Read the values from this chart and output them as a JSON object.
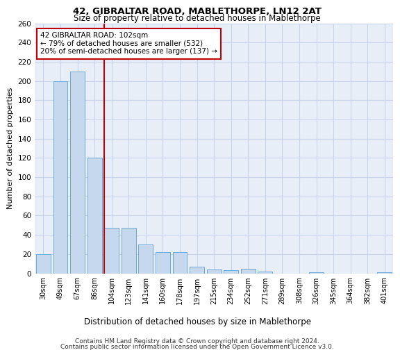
{
  "title": "42, GIBRALTAR ROAD, MABLETHORPE, LN12 2AT",
  "subtitle": "Size of property relative to detached houses in Mablethorpe",
  "xlabel": "Distribution of detached houses by size in Mablethorpe",
  "ylabel": "Number of detached properties",
  "categories": [
    "30sqm",
    "49sqm",
    "67sqm",
    "86sqm",
    "104sqm",
    "123sqm",
    "141sqm",
    "160sqm",
    "178sqm",
    "197sqm",
    "215sqm",
    "234sqm",
    "252sqm",
    "271sqm",
    "289sqm",
    "308sqm",
    "326sqm",
    "345sqm",
    "364sqm",
    "382sqm",
    "401sqm"
  ],
  "values": [
    20,
    200,
    210,
    120,
    47,
    47,
    30,
    22,
    22,
    7,
    4,
    3,
    5,
    2,
    0,
    0,
    1,
    0,
    0,
    0,
    1
  ],
  "bar_color": "#c5d8ed",
  "bar_edge_color": "#6aaad4",
  "property_line_color": "#c00000",
  "annotation_line1": "42 GIBRALTAR ROAD: 102sqm",
  "annotation_line2": "← 79% of detached houses are smaller (532)",
  "annotation_line3": "20% of semi-detached houses are larger (137) →",
  "annotation_box_color": "#c00000",
  "ylim": [
    0,
    260
  ],
  "yticks": [
    0,
    20,
    40,
    60,
    80,
    100,
    120,
    140,
    160,
    180,
    200,
    220,
    240,
    260
  ],
  "grid_color": "#c8d4e8",
  "bg_color": "#e8eef8",
  "footer1": "Contains HM Land Registry data © Crown copyright and database right 2024.",
  "footer2": "Contains public sector information licensed under the Open Government Licence v3.0."
}
